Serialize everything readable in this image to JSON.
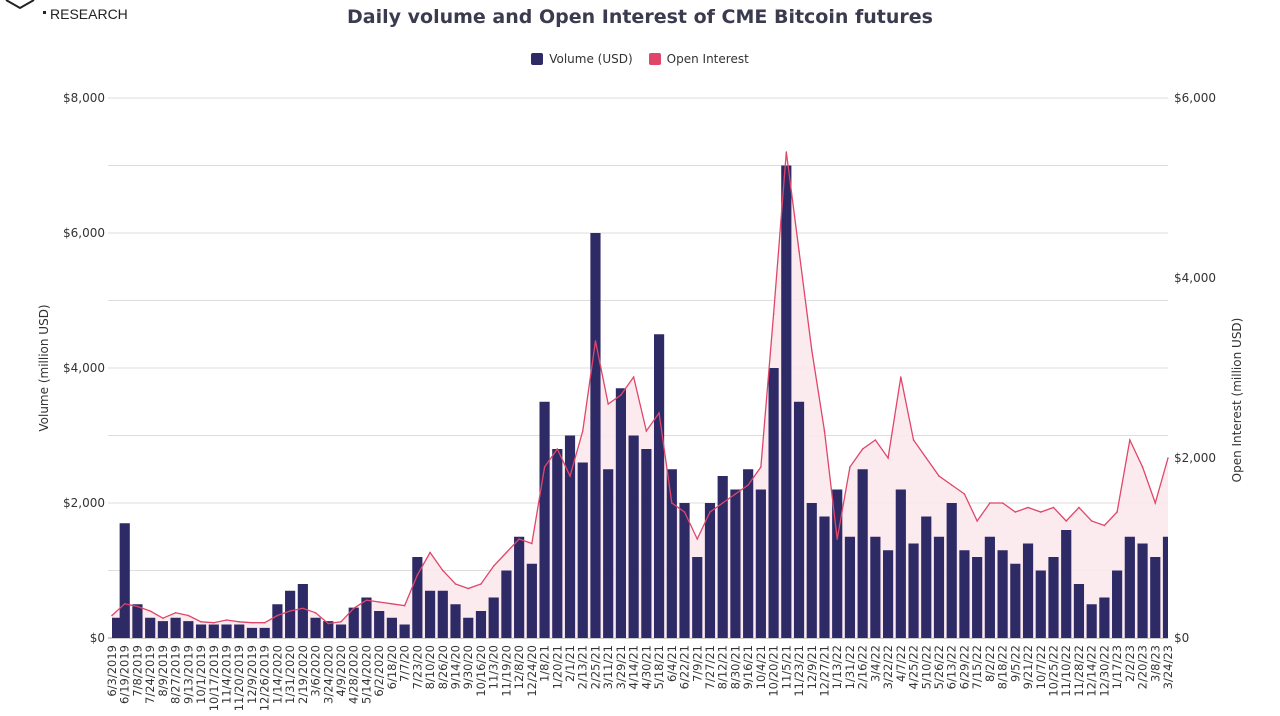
{
  "logo": {
    "text": "RESEARCH"
  },
  "chart_data": {
    "type": "bar+line",
    "title": "Daily volume and Open Interest of CME Bitcoin futures",
    "legend_position": "top",
    "grid": true,
    "colors": {
      "volume": "#2e2a66",
      "open_interest": "#e0466a",
      "oi_fill": "#fbe8ec"
    },
    "y_left": {
      "label": "Volume (million USD)",
      "range": [
        0,
        8000
      ],
      "ticks": [
        "$0",
        "$2,000",
        "$4,000",
        "$6,000",
        "$8,000"
      ],
      "tick_values": [
        0,
        2000,
        4000,
        6000,
        8000
      ]
    },
    "y_right": {
      "label": "Open Interest (million USD)",
      "range": [
        0,
        6000
      ],
      "ticks": [
        "$0",
        "$2,000",
        "$4,000",
        "$6,000"
      ],
      "tick_values": [
        0,
        2000,
        4000,
        6000
      ]
    },
    "categories": [
      "6/3/2019",
      "6/19/2019",
      "7/8/2019",
      "7/24/2019",
      "8/9/2019",
      "8/27/2019",
      "9/13/2019",
      "10/1/2019",
      "10/17/2019",
      "11/4/2019",
      "11/20/2019",
      "12/9/2019",
      "12/26/2019",
      "1/14/2020",
      "1/31/2020",
      "2/19/2020",
      "3/6/2020",
      "3/24/2020",
      "4/9/2020",
      "4/28/2020",
      "5/14/2020",
      "6/2/2020",
      "6/18/20",
      "7/7/20",
      "7/23/20",
      "8/10/20",
      "8/26/20",
      "9/14/20",
      "9/30/20",
      "10/16/20",
      "11/3/20",
      "11/19/20",
      "12/8/20",
      "12/24/20",
      "1/8/21",
      "1/20/21",
      "2/1/21",
      "2/13/21",
      "2/25/21",
      "3/11/21",
      "3/29/21",
      "4/14/21",
      "4/30/21",
      "5/18/21",
      "6/4/21",
      "6/22/21",
      "7/9/21",
      "7/27/21",
      "8/12/21",
      "8/30/21",
      "9/16/21",
      "10/4/21",
      "10/20/21",
      "11/5/21",
      "11/23/21",
      "12/9/21",
      "12/27/21",
      "1/13/22",
      "1/31/22",
      "2/16/22",
      "3/4/22",
      "3/22/22",
      "4/7/22",
      "4/25/22",
      "5/10/22",
      "5/26/22",
      "6/13/22",
      "6/29/22",
      "7/15/22",
      "8/2/22",
      "8/18/22",
      "9/5/22",
      "9/21/22",
      "10/7/22",
      "10/25/22",
      "11/10/22",
      "11/28/22",
      "12/14/22",
      "12/30/22",
      "1/17/23",
      "2/2/23",
      "2/20/23",
      "3/8/23",
      "3/24/23"
    ],
    "series": [
      {
        "name": "Volume (USD)",
        "type": "bar",
        "axis": "left",
        "values": [
          300,
          1700,
          500,
          300,
          250,
          300,
          250,
          200,
          200,
          200,
          200,
          150,
          150,
          500,
          700,
          800,
          300,
          250,
          200,
          450,
          600,
          400,
          300,
          200,
          1200,
          700,
          700,
          500,
          300,
          400,
          600,
          1000,
          1500,
          1100,
          3500,
          2800,
          3000,
          2600,
          6000,
          2500,
          3700,
          3000,
          2800,
          4500,
          2500,
          2000,
          1200,
          2000,
          2400,
          2200,
          2500,
          2200,
          4000,
          7000,
          3500,
          2000,
          1800,
          2200,
          1500,
          2500,
          1500,
          1300,
          2200,
          1400,
          1800,
          1500,
          2000,
          1300,
          1200,
          1500,
          1300,
          1100,
          1400,
          1000,
          1200,
          1600,
          800,
          500,
          600,
          1000,
          1500,
          1400,
          1200,
          1500
        ]
      },
      {
        "name": "Open Interest",
        "type": "line",
        "axis": "right",
        "values": [
          250,
          380,
          350,
          300,
          220,
          280,
          250,
          180,
          170,
          200,
          180,
          170,
          170,
          250,
          300,
          330,
          280,
          160,
          180,
          330,
          420,
          400,
          380,
          360,
          700,
          950,
          750,
          600,
          550,
          600,
          800,
          950,
          1100,
          1050,
          1900,
          2100,
          1800,
          2300,
          3300,
          2600,
          2700,
          2900,
          2300,
          2500,
          1500,
          1400,
          1100,
          1400,
          1500,
          1600,
          1700,
          1900,
          3600,
          5400,
          4300,
          3200,
          2300,
          1100,
          1900,
          2100,
          2200,
          2000,
          2900,
          2200,
          2000,
          1800,
          1700,
          1600,
          1300,
          1500,
          1500,
          1400,
          1450,
          1400,
          1450,
          1300,
          1450,
          1300,
          1250,
          1400,
          2200,
          1900,
          1500,
          2000
        ]
      }
    ]
  }
}
